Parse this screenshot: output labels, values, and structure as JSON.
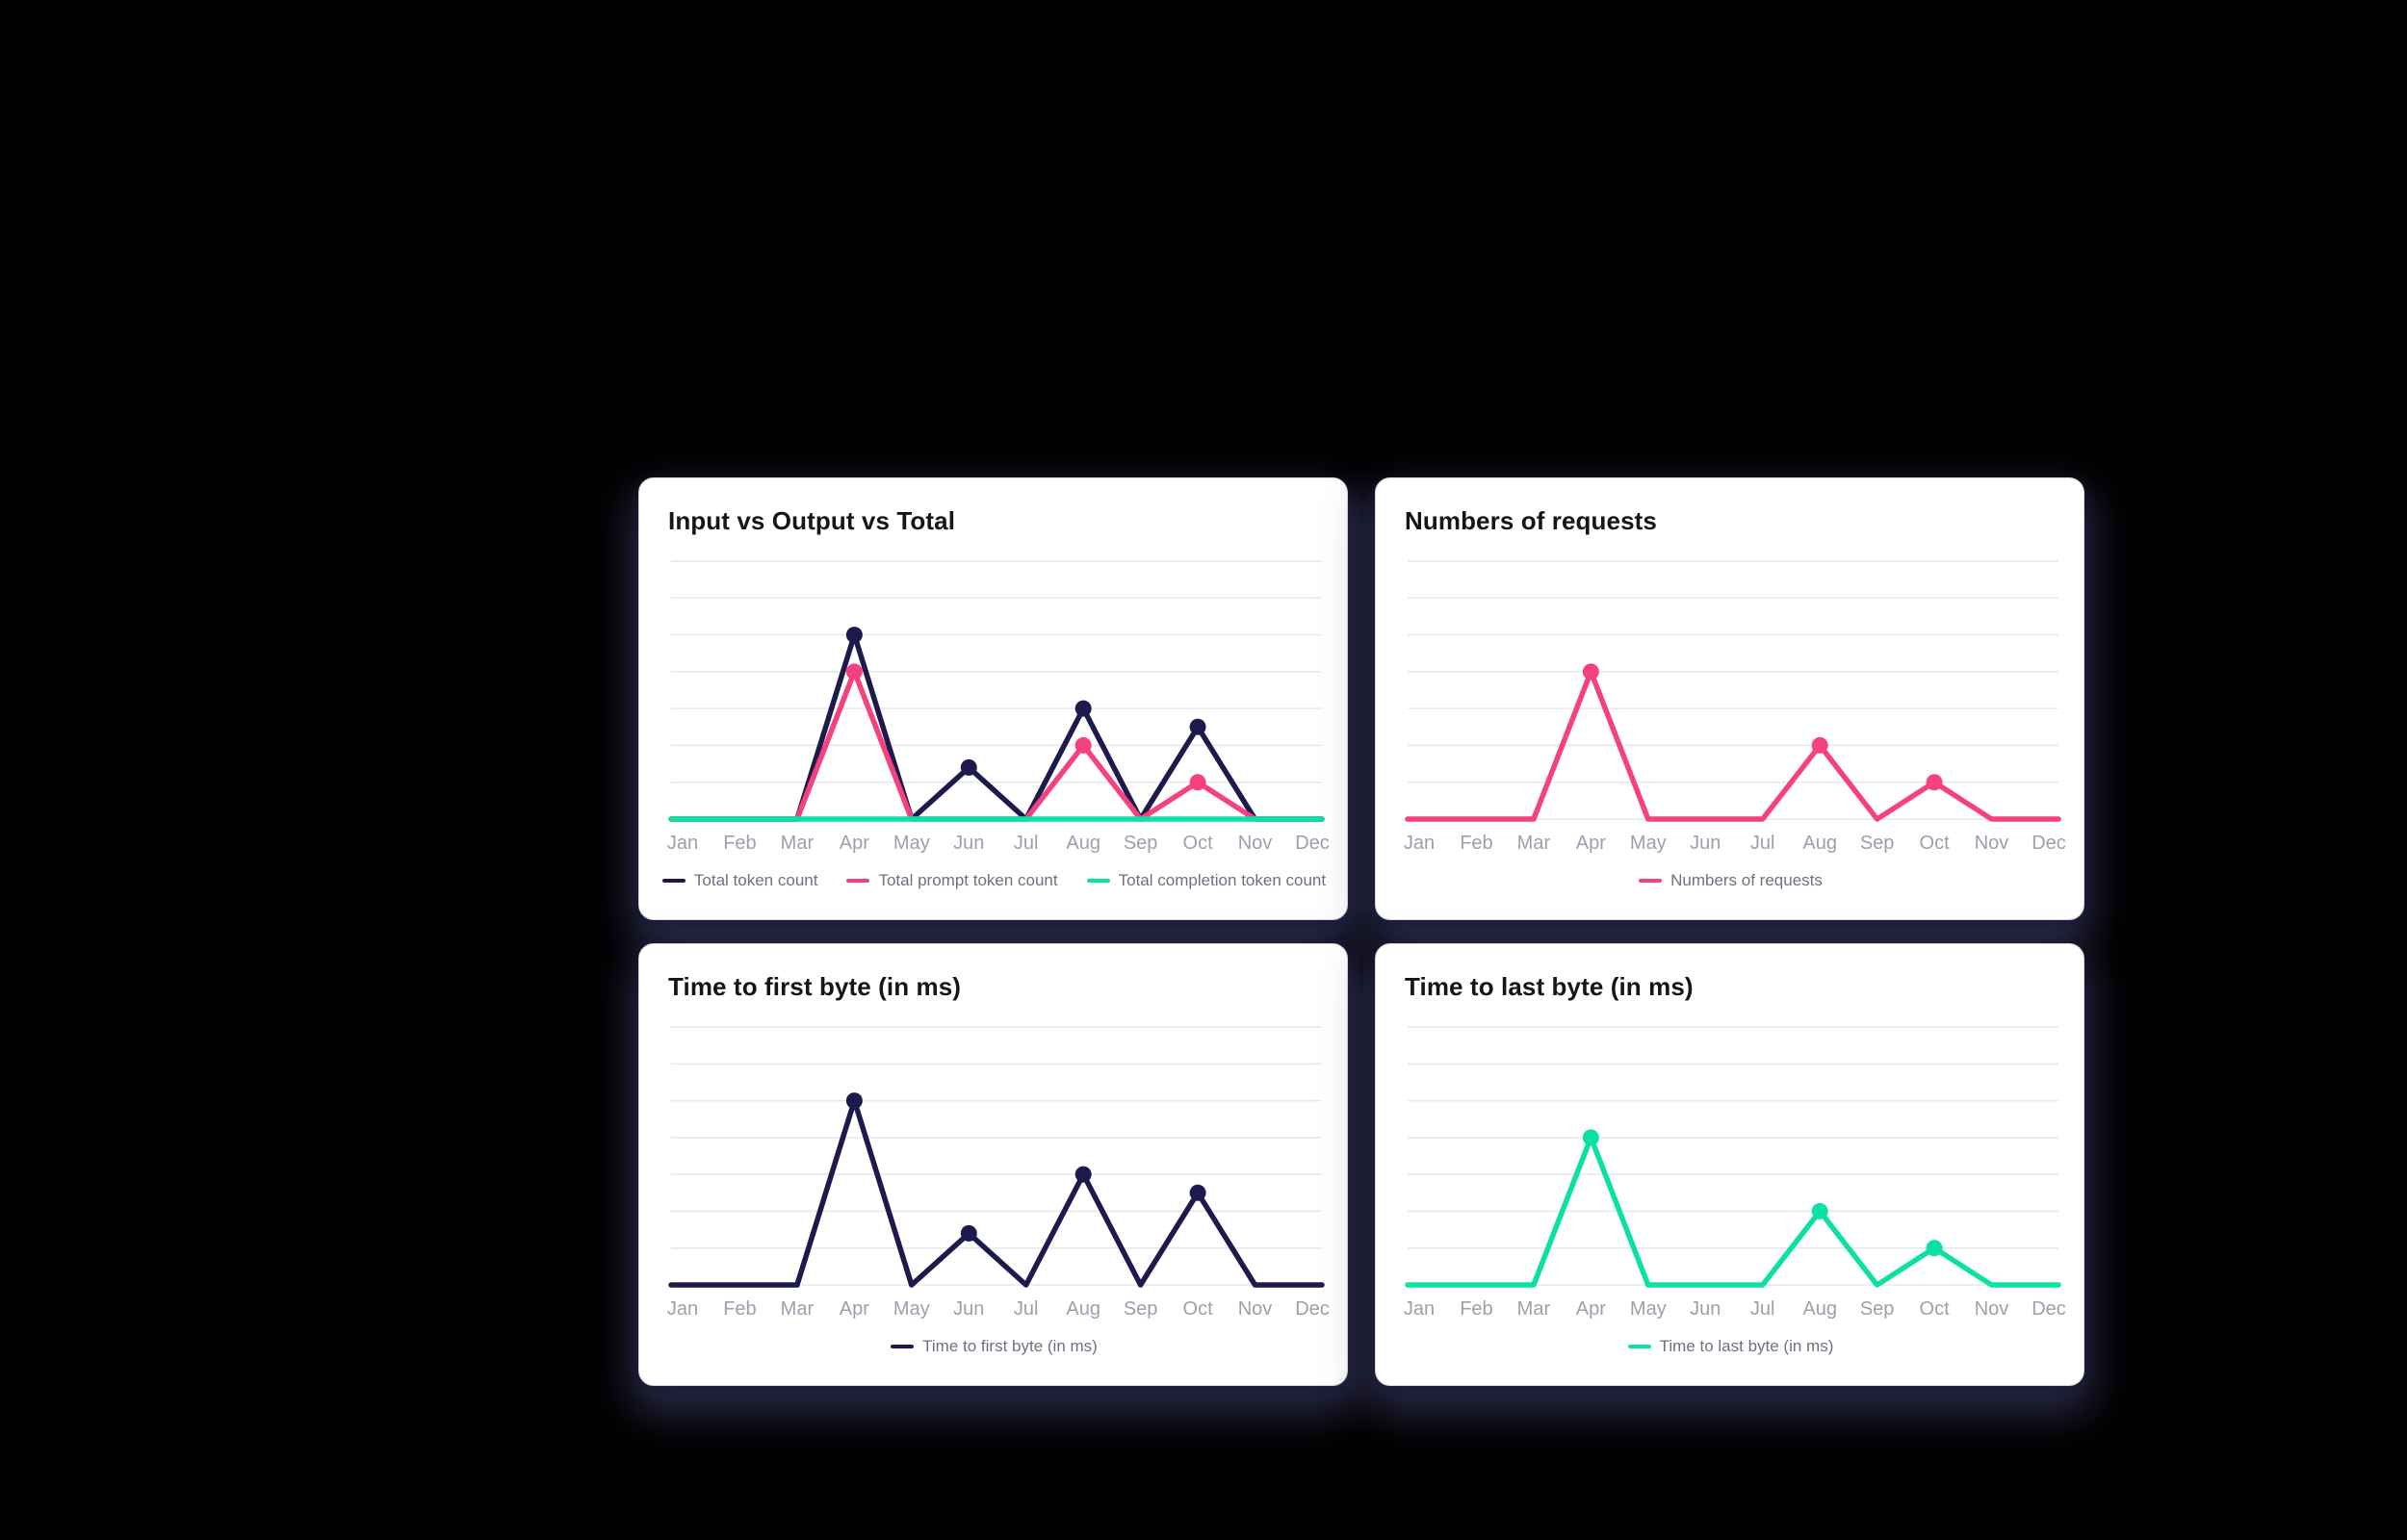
{
  "page": {
    "background_color": "#000000",
    "card_background_color": "#ffffff"
  },
  "colors": {
    "navy": "#1d1b4d",
    "pink": "#f6417f",
    "mint": "#0ce0a2",
    "gridline": "#e7e8ed",
    "axis_label": "#9aa0ae",
    "legend_text": "#6d7280",
    "title_text": "#15151b"
  },
  "chart_data": [
    {
      "type": "line",
      "title": "Input vs Output vs Total",
      "categories": [
        "Jan",
        "Feb",
        "Mar",
        "Apr",
        "May",
        "Jun",
        "Jul",
        "Aug",
        "Sep",
        "Oct",
        "Nov",
        "Dec"
      ],
      "series": [
        {
          "name": "Total token count",
          "color": "#1d1b4d",
          "values": [
            0,
            0,
            0,
            50,
            0,
            14,
            0,
            30,
            0,
            25,
            0,
            0
          ]
        },
        {
          "name": "Total prompt token count",
          "color": "#f6417f",
          "values": [
            0,
            0,
            0,
            40,
            0,
            0,
            0,
            20,
            0,
            10,
            0,
            0
          ]
        },
        {
          "name": "Total completion token count",
          "color": "#0ce0a2",
          "values": [
            0,
            0,
            0,
            0,
            0,
            0,
            0,
            0,
            0,
            0,
            0,
            0
          ]
        }
      ],
      "xlabel": "",
      "ylabel": "",
      "ylim": [
        0,
        70
      ],
      "gridlines": 8,
      "grid": "horizontal-only",
      "y_tick_labels_visible": false,
      "legend_position": "bottom-center"
    },
    {
      "type": "line",
      "title": "Numbers of requests",
      "categories": [
        "Jan",
        "Feb",
        "Mar",
        "Apr",
        "May",
        "Jun",
        "Jul",
        "Aug",
        "Sep",
        "Oct",
        "Nov",
        "Dec"
      ],
      "series": [
        {
          "name": "Numbers of requests",
          "color": "#f6417f",
          "values": [
            0,
            0,
            0,
            40,
            0,
            0,
            0,
            20,
            0,
            10,
            0,
            0
          ]
        }
      ],
      "xlabel": "",
      "ylabel": "",
      "ylim": [
        0,
        70
      ],
      "gridlines": 8,
      "grid": "horizontal-only",
      "y_tick_labels_visible": false,
      "legend_position": "bottom-center"
    },
    {
      "type": "line",
      "title": "Time to first byte (in ms)",
      "categories": [
        "Jan",
        "Feb",
        "Mar",
        "Apr",
        "May",
        "Jun",
        "Jul",
        "Aug",
        "Sep",
        "Oct",
        "Nov",
        "Dec"
      ],
      "series": [
        {
          "name": "Time to first byte (in ms)",
          "color": "#1d1b4d",
          "values": [
            0,
            0,
            0,
            50,
            0,
            14,
            0,
            30,
            0,
            25,
            0,
            0
          ]
        }
      ],
      "xlabel": "",
      "ylabel": "",
      "ylim": [
        0,
        70
      ],
      "gridlines": 8,
      "grid": "horizontal-only",
      "y_tick_labels_visible": false,
      "legend_position": "bottom-center"
    },
    {
      "type": "line",
      "title": "Time to last byte (in ms)",
      "categories": [
        "Jan",
        "Feb",
        "Mar",
        "Apr",
        "May",
        "Jun",
        "Jul",
        "Aug",
        "Sep",
        "Oct",
        "Nov",
        "Dec"
      ],
      "series": [
        {
          "name": "Time to last byte (in ms)",
          "color": "#0ce0a2",
          "values": [
            0,
            0,
            0,
            40,
            0,
            0,
            0,
            20,
            0,
            10,
            0,
            0
          ]
        }
      ],
      "xlabel": "",
      "ylabel": "",
      "ylim": [
        0,
        70
      ],
      "gridlines": 8,
      "grid": "horizontal-only",
      "y_tick_labels_visible": false,
      "legend_position": "bottom-center"
    }
  ]
}
